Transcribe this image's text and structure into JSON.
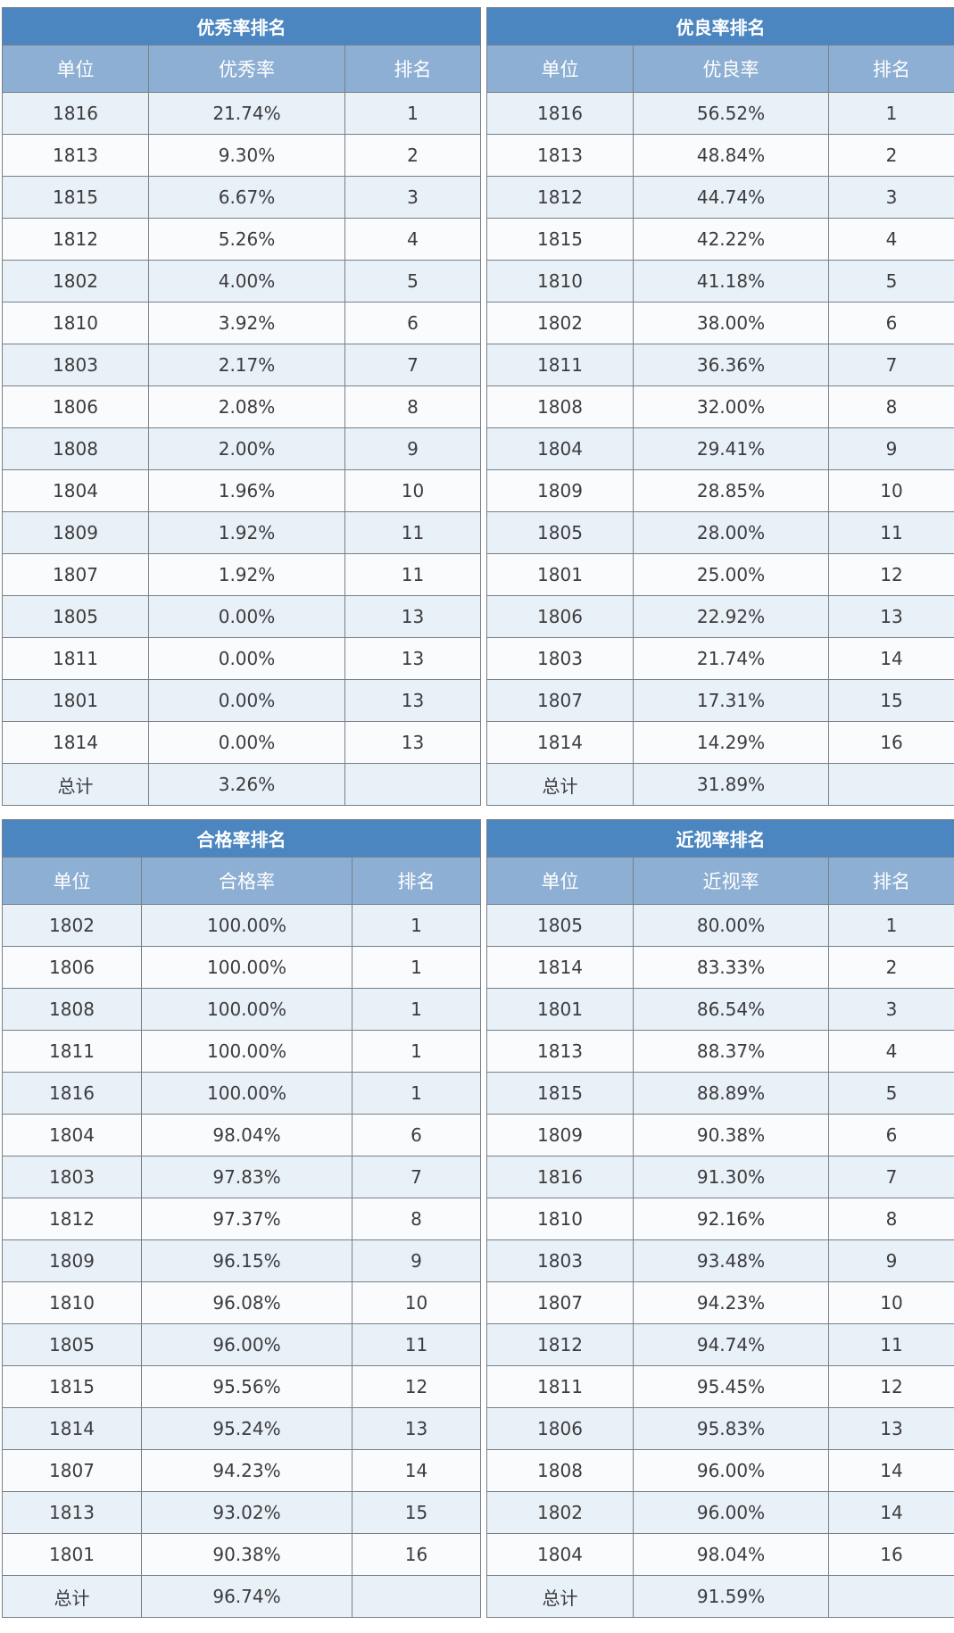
{
  "tables": [
    {
      "title": "优秀率排名",
      "headers": [
        "单位",
        "优秀率",
        "排名"
      ],
      "rows": [
        [
          "1816",
          "21.74%",
          "1"
        ],
        [
          "1813",
          "9.30%",
          "2"
        ],
        [
          "1815",
          "6.67%",
          "3"
        ],
        [
          "1812",
          "5.26%",
          "4"
        ],
        [
          "1802",
          "4.00%",
          "5"
        ],
        [
          "1810",
          "3.92%",
          "6"
        ],
        [
          "1803",
          "2.17%",
          "7"
        ],
        [
          "1806",
          "2.08%",
          "8"
        ],
        [
          "1808",
          "2.00%",
          "9"
        ],
        [
          "1804",
          "1.96%",
          "10"
        ],
        [
          "1809",
          "1.92%",
          "11"
        ],
        [
          "1807",
          "1.92%",
          "11"
        ],
        [
          "1805",
          "0.00%",
          "13"
        ],
        [
          "1811",
          "0.00%",
          "13"
        ],
        [
          "1801",
          "0.00%",
          "13"
        ],
        [
          "1814",
          "0.00%",
          "13"
        ],
        [
          "总计",
          "3.26%",
          ""
        ]
      ]
    },
    {
      "title": "优良率排名",
      "headers": [
        "单位",
        "优良率",
        "排名"
      ],
      "rows": [
        [
          "1816",
          "56.52%",
          "1"
        ],
        [
          "1813",
          "48.84%",
          "2"
        ],
        [
          "1812",
          "44.74%",
          "3"
        ],
        [
          "1815",
          "42.22%",
          "4"
        ],
        [
          "1810",
          "41.18%",
          "5"
        ],
        [
          "1802",
          "38.00%",
          "6"
        ],
        [
          "1811",
          "36.36%",
          "7"
        ],
        [
          "1808",
          "32.00%",
          "8"
        ],
        [
          "1804",
          "29.41%",
          "9"
        ],
        [
          "1809",
          "28.85%",
          "10"
        ],
        [
          "1805",
          "28.00%",
          "11"
        ],
        [
          "1801",
          "25.00%",
          "12"
        ],
        [
          "1806",
          "22.92%",
          "13"
        ],
        [
          "1803",
          "21.74%",
          "14"
        ],
        [
          "1807",
          "17.31%",
          "15"
        ],
        [
          "1814",
          "14.29%",
          "16"
        ],
        [
          "总计",
          "31.89%",
          ""
        ]
      ]
    },
    {
      "title": "合格率排名",
      "headers": [
        "单位",
        "合格率",
        "排名"
      ],
      "rows": [
        [
          "1802",
          "100.00%",
          "1"
        ],
        [
          "1806",
          "100.00%",
          "1"
        ],
        [
          "1808",
          "100.00%",
          "1"
        ],
        [
          "1811",
          "100.00%",
          "1"
        ],
        [
          "1816",
          "100.00%",
          "1"
        ],
        [
          "1804",
          "98.04%",
          "6"
        ],
        [
          "1803",
          "97.83%",
          "7"
        ],
        [
          "1812",
          "97.37%",
          "8"
        ],
        [
          "1809",
          "96.15%",
          "9"
        ],
        [
          "1810",
          "96.08%",
          "10"
        ],
        [
          "1805",
          "96.00%",
          "11"
        ],
        [
          "1815",
          "95.56%",
          "12"
        ],
        [
          "1814",
          "95.24%",
          "13"
        ],
        [
          "1807",
          "94.23%",
          "14"
        ],
        [
          "1813",
          "93.02%",
          "15"
        ],
        [
          "1801",
          "90.38%",
          "16"
        ],
        [
          "总计",
          "96.74%",
          ""
        ]
      ]
    },
    {
      "title": "近视率排名",
      "headers": [
        "单位",
        "近视率",
        "排名"
      ],
      "rows": [
        [
          "1805",
          "80.00%",
          "1"
        ],
        [
          "1814",
          "83.33%",
          "2"
        ],
        [
          "1801",
          "86.54%",
          "3"
        ],
        [
          "1813",
          "88.37%",
          "4"
        ],
        [
          "1815",
          "88.89%",
          "5"
        ],
        [
          "1809",
          "90.38%",
          "6"
        ],
        [
          "1816",
          "91.30%",
          "7"
        ],
        [
          "1810",
          "92.16%",
          "8"
        ],
        [
          "1803",
          "93.48%",
          "9"
        ],
        [
          "1807",
          "94.23%",
          "10"
        ],
        [
          "1812",
          "94.74%",
          "11"
        ],
        [
          "1811",
          "95.45%",
          "12"
        ],
        [
          "1806",
          "95.83%",
          "13"
        ],
        [
          "1808",
          "96.00%",
          "14"
        ],
        [
          "1802",
          "96.00%",
          "14"
        ],
        [
          "1804",
          "98.04%",
          "16"
        ],
        [
          "总计",
          "91.59%",
          ""
        ]
      ]
    }
  ]
}
